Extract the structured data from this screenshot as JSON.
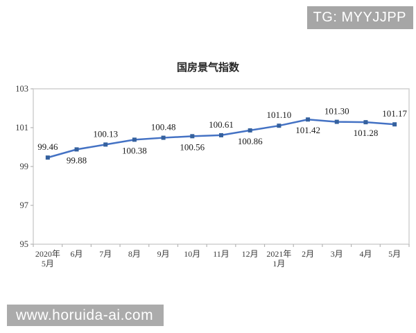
{
  "watermarks": {
    "top_right": "TG: MYYJJPP",
    "bottom_left": "www.horuida-ai.com"
  },
  "chart_data": {
    "type": "line",
    "title": "国房景气指数",
    "categories": [
      "2020年\n5月",
      "6月",
      "7月",
      "8月",
      "9月",
      "10月",
      "11月",
      "12月",
      "2021年\n1月",
      "2月",
      "3月",
      "4月",
      "5月"
    ],
    "values": [
      99.46,
      99.88,
      100.13,
      100.38,
      100.48,
      100.56,
      100.61,
      100.86,
      101.1,
      101.42,
      101.3,
      101.28,
      101.17
    ],
    "labels": [
      "99.46",
      "99.88",
      "100.13",
      "100.38",
      "100.48",
      "100.56",
      "100.61",
      "100.86",
      "101.10",
      "101.42",
      "101.30",
      "101.28",
      "101.17"
    ],
    "label_positions": [
      "above",
      "below",
      "above",
      "below",
      "above",
      "below",
      "above",
      "below",
      "above",
      "below",
      "above",
      "below",
      "above"
    ],
    "xlabel": "",
    "ylabel": "",
    "ylim": [
      95,
      103
    ],
    "yticks": [
      95,
      97,
      99,
      101,
      103
    ],
    "grid": false,
    "legend": false,
    "colors": {
      "line": "#4472c4",
      "marker": "#35619e",
      "plot_border": "#d0d0d0",
      "tick": "#b5b5b5",
      "axis_text": "#3a3a3a",
      "data_label": "#1a1a1a"
    }
  }
}
